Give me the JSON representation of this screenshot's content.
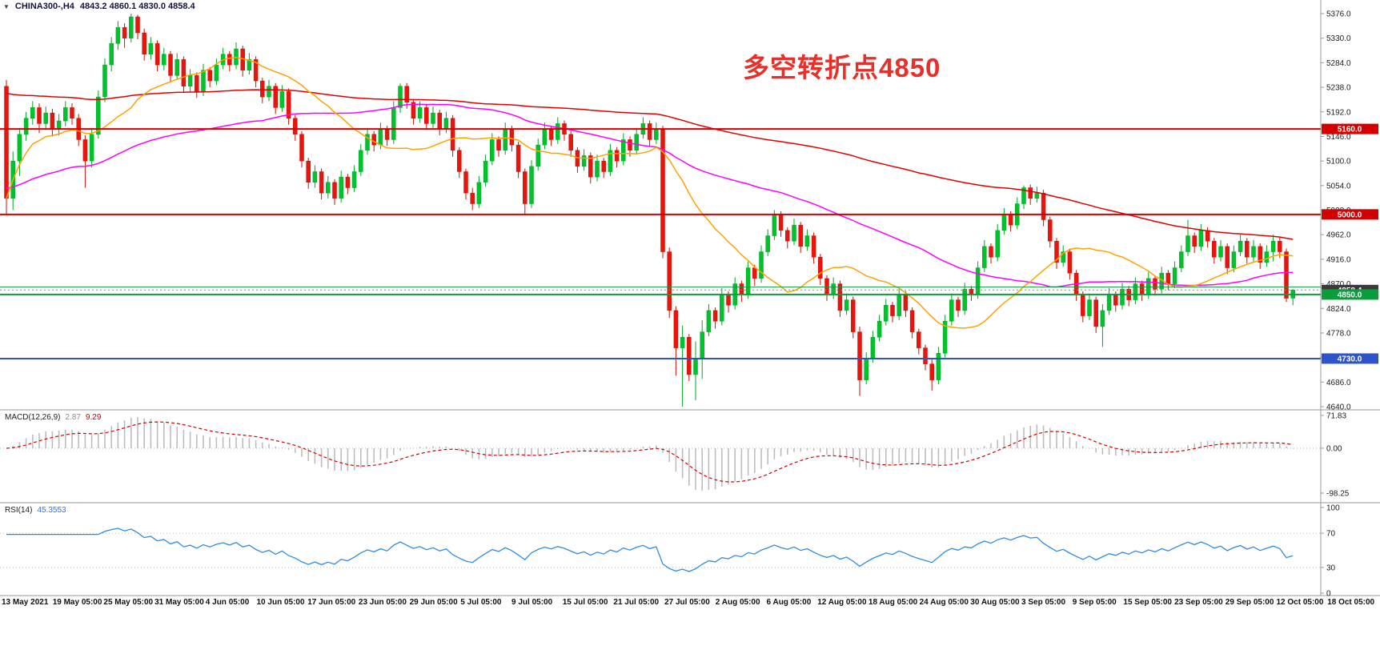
{
  "window": {
    "dropdown_icon": "▼",
    "symbol_tf": "CHINA300-,H4",
    "ohlc_text": "4843.2 4860.1 4830.0 4858.4"
  },
  "annotation": {
    "text": "多空转折点4850",
    "color": "#e8302a"
  },
  "macd": {
    "name": "MACD(12,26,9)",
    "main_value": "2.87",
    "signal_value": "9.29"
  },
  "rsi": {
    "name": "RSI(14)",
    "value": "45.3553"
  },
  "colors": {
    "bull": "#00c32b",
    "bear": "#e8150c",
    "wick_bull": "#00a524",
    "wick_bear": "#c91208",
    "ma_long": "#e00000",
    "ma_mid": "#ff00ff",
    "ma_short": "#ffa200",
    "macd_hist": "#bdbdbd",
    "macd_signal": "#d40000",
    "rsi_line": "#2f8ce0",
    "level_dotted": "#b5b5b5",
    "separator": "#9a9a9a",
    "tick_text": "#1c1c1c",
    "current_tag": "#3a3a3a"
  },
  "chart_data": {
    "type": "candlestick",
    "symbol": "CHINA300-",
    "timeframe": "H4",
    "title": "CHINA300- H4 candlestick chart with MACD and RSI",
    "ylim": [
      4640,
      5376
    ],
    "y_ticks": [
      5376,
      5330,
      5284,
      5238,
      5192,
      5146,
      5100,
      5054,
      5008,
      4962,
      4916,
      4870,
      4824,
      4778,
      4732,
      4686,
      4640
    ],
    "x_labels": [
      "13 May 2021",
      "19 May 05:00",
      "25 May 05:00",
      "31 May 05:00",
      "4 Jun 05:00",
      "10 Jun 05:00",
      "17 Jun 05:00",
      "23 Jun 05:00",
      "29 Jun 05:00",
      "5 Jul 05:00",
      "9 Jul 05:00",
      "15 Jul 05:00",
      "21 Jul 05:00",
      "27 Jul 05:00",
      "2 Aug 05:00",
      "6 Aug 05:00",
      "12 Aug 05:00",
      "18 Aug 05:00",
      "24 Aug 05:00",
      "30 Aug 05:00",
      "3 Sep 05:00",
      "9 Sep 05:00",
      "15 Sep 05:00",
      "23 Sep 05:00",
      "29 Sep 05:00",
      "12 Oct 05:00",
      "18 Oct 05:00"
    ],
    "overlays": {
      "horizontal_lines": [
        {
          "price": 5160.0,
          "color": "#d40000",
          "width": 2,
          "label": "5160.0"
        },
        {
          "price": 5000.0,
          "color": "#d40000",
          "width": 2,
          "label": "5000.0"
        },
        {
          "price": 4864.0,
          "color": "#0a9d3c",
          "width": 1,
          "label": ""
        },
        {
          "price": 4850.0,
          "color": "#0a9d3c",
          "width": 2,
          "label": "4850.0"
        },
        {
          "price": 4730.0,
          "color": "#2d54c8",
          "width": 2,
          "label": "4730.0"
        }
      ],
      "current_price": {
        "value": 4858.4,
        "label": "4858.4"
      },
      "moving_averages": [
        {
          "name": "ma-long",
          "period": 140,
          "seed": 5230,
          "seed_count": 60,
          "color": "#e00000"
        },
        {
          "name": "ma-mid",
          "period": 60,
          "seed": 5050,
          "seed_count": 20,
          "color": "#ff00ff"
        },
        {
          "name": "ma-short",
          "period": 20,
          "seed": 0,
          "seed_count": 0,
          "color": "#ffa200"
        }
      ],
      "annotation": "多空转折点4850"
    },
    "indicators": [
      {
        "type": "MACD",
        "params": [
          12,
          26,
          9
        ],
        "display_values": [
          2.87,
          9.29
        ],
        "scale_ticks": [
          71.83,
          0.0,
          -98.25
        ]
      },
      {
        "type": "RSI",
        "params": [
          14
        ],
        "display_value": 45.3553,
        "scale_ticks": [
          100,
          70,
          30,
          0
        ],
        "levels": [
          70,
          30
        ]
      }
    ],
    "candles_ohlc": [
      [
        5240,
        5252,
        5000,
        5030
      ],
      [
        5030,
        5118,
        5008,
        5100
      ],
      [
        5100,
        5162,
        5072,
        5150
      ],
      [
        5150,
        5192,
        5138,
        5180
      ],
      [
        5180,
        5212,
        5168,
        5200
      ],
      [
        5200,
        5208,
        5152,
        5170
      ],
      [
        5170,
        5202,
        5158,
        5190
      ],
      [
        5190,
        5198,
        5146,
        5160
      ],
      [
        5160,
        5188,
        5148,
        5175
      ],
      [
        5175,
        5212,
        5165,
        5200
      ],
      [
        5200,
        5208,
        5168,
        5180
      ],
      [
        5180,
        5188,
        5128,
        5140
      ],
      [
        5140,
        5148,
        5050,
        5100
      ],
      [
        5100,
        5162,
        5088,
        5150
      ],
      [
        5150,
        5232,
        5142,
        5220
      ],
      [
        5220,
        5292,
        5210,
        5280
      ],
      [
        5280,
        5332,
        5268,
        5320
      ],
      [
        5320,
        5362,
        5308,
        5350
      ],
      [
        5350,
        5358,
        5312,
        5330
      ],
      [
        5330,
        5376,
        5322,
        5370
      ],
      [
        5370,
        5374,
        5328,
        5340
      ],
      [
        5340,
        5348,
        5288,
        5300
      ],
      [
        5300,
        5332,
        5290,
        5320
      ],
      [
        5320,
        5326,
        5268,
        5280
      ],
      [
        5280,
        5312,
        5270,
        5300
      ],
      [
        5300,
        5306,
        5248,
        5260
      ],
      [
        5260,
        5302,
        5252,
        5290
      ],
      [
        5290,
        5296,
        5228,
        5240
      ],
      [
        5240,
        5272,
        5230,
        5260
      ],
      [
        5260,
        5266,
        5218,
        5230
      ],
      [
        5230,
        5282,
        5222,
        5270
      ],
      [
        5270,
        5276,
        5238,
        5250
      ],
      [
        5250,
        5292,
        5242,
        5280
      ],
      [
        5280,
        5312,
        5272,
        5300
      ],
      [
        5300,
        5306,
        5268,
        5280
      ],
      [
        5280,
        5322,
        5272,
        5310
      ],
      [
        5310,
        5316,
        5258,
        5270
      ],
      [
        5270,
        5302,
        5262,
        5290
      ],
      [
        5290,
        5296,
        5238,
        5250
      ],
      [
        5250,
        5256,
        5208,
        5220
      ],
      [
        5220,
        5252,
        5212,
        5240
      ],
      [
        5240,
        5246,
        5188,
        5200
      ],
      [
        5200,
        5242,
        5192,
        5230
      ],
      [
        5230,
        5236,
        5168,
        5180
      ],
      [
        5180,
        5186,
        5138,
        5150
      ],
      [
        5150,
        5156,
        5088,
        5100
      ],
      [
        5100,
        5106,
        5048,
        5060
      ],
      [
        5060,
        5092,
        5050,
        5080
      ],
      [
        5080,
        5086,
        5028,
        5040
      ],
      [
        5040,
        5072,
        5030,
        5060
      ],
      [
        5060,
        5066,
        5018,
        5030
      ],
      [
        5030,
        5082,
        5022,
        5070
      ],
      [
        5070,
        5076,
        5038,
        5050
      ],
      [
        5050,
        5092,
        5042,
        5080
      ],
      [
        5080,
        5132,
        5072,
        5120
      ],
      [
        5120,
        5162,
        5112,
        5150
      ],
      [
        5150,
        5156,
        5118,
        5130
      ],
      [
        5130,
        5172,
        5122,
        5160
      ],
      [
        5160,
        5166,
        5128,
        5140
      ],
      [
        5140,
        5212,
        5132,
        5200
      ],
      [
        5200,
        5245,
        5190,
        5240
      ],
      [
        5240,
        5246,
        5198,
        5210
      ],
      [
        5210,
        5216,
        5168,
        5180
      ],
      [
        5180,
        5212,
        5172,
        5200
      ],
      [
        5200,
        5206,
        5158,
        5170
      ],
      [
        5170,
        5202,
        5162,
        5190
      ],
      [
        5190,
        5196,
        5148,
        5160
      ],
      [
        5160,
        5192,
        5152,
        5180
      ],
      [
        5180,
        5186,
        5108,
        5120
      ],
      [
        5120,
        5126,
        5068,
        5080
      ],
      [
        5080,
        5086,
        5028,
        5040
      ],
      [
        5040,
        5050,
        5008,
        5020
      ],
      [
        5020,
        5072,
        5012,
        5060
      ],
      [
        5060,
        5112,
        5052,
        5100
      ],
      [
        5100,
        5152,
        5092,
        5140
      ],
      [
        5140,
        5146,
        5108,
        5120
      ],
      [
        5120,
        5172,
        5112,
        5160
      ],
      [
        5160,
        5166,
        5118,
        5130
      ],
      [
        5130,
        5136,
        5068,
        5080
      ],
      [
        5080,
        5086,
        5000,
        5020
      ],
      [
        5020,
        5102,
        5012,
        5090
      ],
      [
        5090,
        5142,
        5082,
        5130
      ],
      [
        5130,
        5172,
        5122,
        5160
      ],
      [
        5160,
        5166,
        5128,
        5140
      ],
      [
        5140,
        5182,
        5132,
        5170
      ],
      [
        5170,
        5176,
        5138,
        5150
      ],
      [
        5150,
        5156,
        5108,
        5120
      ],
      [
        5120,
        5126,
        5078,
        5090
      ],
      [
        5090,
        5122,
        5082,
        5110
      ],
      [
        5110,
        5116,
        5058,
        5070
      ],
      [
        5070,
        5112,
        5062,
        5100
      ],
      [
        5100,
        5106,
        5068,
        5080
      ],
      [
        5080,
        5132,
        5072,
        5120
      ],
      [
        5120,
        5126,
        5088,
        5100
      ],
      [
        5100,
        5152,
        5092,
        5140
      ],
      [
        5140,
        5146,
        5108,
        5120
      ],
      [
        5120,
        5162,
        5112,
        5150
      ],
      [
        5150,
        5182,
        5142,
        5170
      ],
      [
        5170,
        5176,
        5128,
        5140
      ],
      [
        5140,
        5172,
        5132,
        5160
      ],
      [
        5160,
        5166,
        4918,
        4930
      ],
      [
        4930,
        4938,
        4806,
        4820
      ],
      [
        4820,
        4828,
        4698,
        4750
      ],
      [
        4750,
        4792,
        4640,
        4770
      ],
      [
        4770,
        4776,
        4688,
        4700
      ],
      [
        4700,
        4762,
        4652,
        4730
      ],
      [
        4730,
        4802,
        4692,
        4780
      ],
      [
        4780,
        4832,
        4772,
        4820
      ],
      [
        4820,
        4826,
        4786,
        4800
      ],
      [
        4800,
        4862,
        4792,
        4850
      ],
      [
        4850,
        4856,
        4816,
        4830
      ],
      [
        4830,
        4882,
        4822,
        4870
      ],
      [
        4870,
        4876,
        4836,
        4850
      ],
      [
        4850,
        4912,
        4842,
        4900
      ],
      [
        4900,
        4906,
        4866,
        4880
      ],
      [
        4880,
        4942,
        4872,
        4930
      ],
      [
        4930,
        4972,
        4922,
        4960
      ],
      [
        4960,
        5008,
        4952,
        5000
      ],
      [
        5000,
        5006,
        4958,
        4970
      ],
      [
        4970,
        4976,
        4936,
        4950
      ],
      [
        4950,
        4992,
        4942,
        4980
      ],
      [
        4980,
        4986,
        4928,
        4940
      ],
      [
        4940,
        4972,
        4932,
        4960
      ],
      [
        4960,
        4966,
        4908,
        4920
      ],
      [
        4920,
        4926,
        4868,
        4880
      ],
      [
        4880,
        4886,
        4838,
        4850
      ],
      [
        4850,
        4882,
        4842,
        4870
      ],
      [
        4870,
        4876,
        4808,
        4820
      ],
      [
        4820,
        4852,
        4812,
        4840
      ],
      [
        4840,
        4846,
        4768,
        4780
      ],
      [
        4780,
        4790,
        4660,
        4690
      ],
      [
        4690,
        4742,
        4682,
        4730
      ],
      [
        4730,
        4782,
        4722,
        4770
      ],
      [
        4770,
        4812,
        4762,
        4800
      ],
      [
        4800,
        4842,
        4792,
        4830
      ],
      [
        4830,
        4836,
        4798,
        4810
      ],
      [
        4810,
        4862,
        4802,
        4850
      ],
      [
        4850,
        4856,
        4808,
        4820
      ],
      [
        4820,
        4826,
        4768,
        4780
      ],
      [
        4780,
        4786,
        4738,
        4750
      ],
      [
        4750,
        4756,
        4708,
        4720
      ],
      [
        4720,
        4730,
        4670,
        4690
      ],
      [
        4690,
        4752,
        4682,
        4740
      ],
      [
        4740,
        4812,
        4732,
        4800
      ],
      [
        4800,
        4852,
        4792,
        4840
      ],
      [
        4840,
        4846,
        4808,
        4820
      ],
      [
        4820,
        4872,
        4812,
        4860
      ],
      [
        4860,
        4866,
        4838,
        4850
      ],
      [
        4850,
        4912,
        4842,
        4900
      ],
      [
        4900,
        4952,
        4892,
        4940
      ],
      [
        4940,
        4946,
        4908,
        4920
      ],
      [
        4920,
        4982,
        4912,
        4970
      ],
      [
        4970,
        5012,
        4962,
        5000
      ],
      [
        5000,
        5006,
        4968,
        4980
      ],
      [
        4980,
        5032,
        4972,
        5020
      ],
      [
        5020,
        5054,
        5010,
        5050
      ],
      [
        5050,
        5056,
        5018,
        5030
      ],
      [
        5030,
        5052,
        5022,
        5040
      ],
      [
        5040,
        5046,
        4978,
        4990
      ],
      [
        4990,
        4996,
        4938,
        4950
      ],
      [
        4950,
        4956,
        4898,
        4910
      ],
      [
        4910,
        4942,
        4902,
        4930
      ],
      [
        4930,
        4936,
        4878,
        4890
      ],
      [
        4890,
        4896,
        4838,
        4850
      ],
      [
        4850,
        4856,
        4798,
        4810
      ],
      [
        4810,
        4852,
        4802,
        4840
      ],
      [
        4840,
        4846,
        4778,
        4790
      ],
      [
        4790,
        4832,
        4752,
        4820
      ],
      [
        4820,
        4862,
        4812,
        4850
      ],
      [
        4850,
        4856,
        4818,
        4830
      ],
      [
        4830,
        4872,
        4822,
        4860
      ],
      [
        4860,
        4866,
        4828,
        4840
      ],
      [
        4840,
        4882,
        4832,
        4870
      ],
      [
        4870,
        4876,
        4838,
        4850
      ],
      [
        4850,
        4892,
        4842,
        4880
      ],
      [
        4880,
        4886,
        4848,
        4860
      ],
      [
        4860,
        4902,
        4852,
        4890
      ],
      [
        4890,
        4896,
        4858,
        4870
      ],
      [
        4870,
        4912,
        4862,
        4900
      ],
      [
        4900,
        4942,
        4892,
        4930
      ],
      [
        4930,
        4990,
        4922,
        4960
      ],
      [
        4960,
        4966,
        4928,
        4940
      ],
      [
        4940,
        4982,
        4932,
        4970
      ],
      [
        4970,
        4976,
        4938,
        4950
      ],
      [
        4950,
        4956,
        4908,
        4920
      ],
      [
        4920,
        4952,
        4912,
        4940
      ],
      [
        4940,
        4946,
        4888,
        4900
      ],
      [
        4900,
        4942,
        4892,
        4930
      ],
      [
        4930,
        4962,
        4922,
        4950
      ],
      [
        4950,
        4956,
        4908,
        4920
      ],
      [
        4920,
        4952,
        4912,
        4940
      ],
      [
        4940,
        4946,
        4898,
        4910
      ],
      [
        4910,
        4942,
        4902,
        4930
      ],
      [
        4930,
        4962,
        4912,
        4950
      ],
      [
        4950,
        4956,
        4918,
        4930
      ],
      [
        4930,
        4936,
        4836,
        4843
      ],
      [
        4843.2,
        4860.1,
        4830.0,
        4858.4
      ]
    ]
  }
}
